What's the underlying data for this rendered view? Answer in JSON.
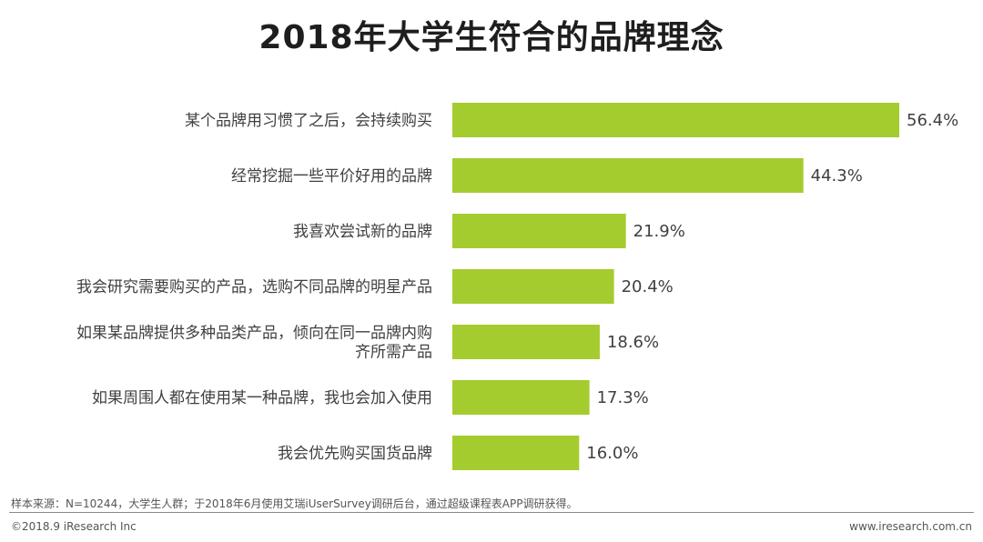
{
  "chart_data": {
    "type": "bar",
    "orientation": "horizontal",
    "title": "2018年大学生符合的品牌理念",
    "categories": [
      [
        "某个品牌用习惯了之后，会持续购买"
      ],
      [
        "经常挖掘一些平价好用的品牌"
      ],
      [
        "我喜欢尝试新的品牌"
      ],
      [
        "我会研究需要购买的产品，选购不同品牌的明星产品"
      ],
      [
        "如果某品牌提供多种品类产品，倾向在同一品牌内购",
        "齐所需产品"
      ],
      [
        "如果周围人都在使用某一种品牌，我也会加入使用"
      ],
      [
        "我会优先购买国货品牌"
      ]
    ],
    "values": [
      56.4,
      44.3,
      21.9,
      20.4,
      18.6,
      17.3,
      16.0
    ],
    "value_labels": [
      "56.4%",
      "44.3%",
      "21.9%",
      "20.4%",
      "18.6%",
      "17.3%",
      "16.0%"
    ],
    "xlim": [
      0,
      56.4
    ],
    "bar_color": "#a4cc2e",
    "grid": false
  },
  "footer": {
    "source": "样本来源：N=10244，大学生人群；于2018年6月使用艾瑞iUserSurvey调研后台，通过超级课程表APP调研获得。",
    "copyright": "©2018.9 iResearch Inc",
    "website": "www.iresearch.com.cn"
  }
}
